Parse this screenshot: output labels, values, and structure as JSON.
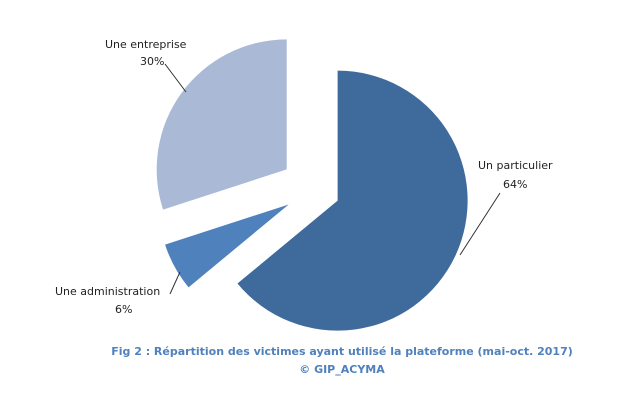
{
  "chart_data": {
    "type": "pie",
    "categories": [
      "Un particulier",
      "Une administration",
      "Une entreprise"
    ],
    "values": [
      64,
      6,
      30
    ],
    "value_labels": [
      "64%",
      "6%",
      "30%"
    ],
    "colors": [
      "#3f6a9c",
      "#4f81bd",
      "#aab9d6"
    ],
    "title": "Fig 2 : Répartition des victimes ayant utilisé la plateforme (mai-oct. 2017)",
    "subtitle": "© GIP_ACYMA"
  }
}
